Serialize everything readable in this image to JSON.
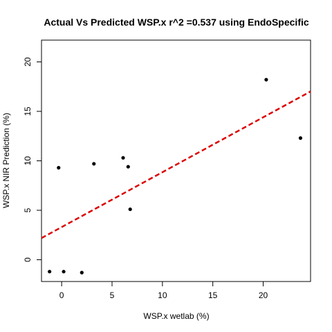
{
  "chart_data": {
    "type": "scatter",
    "title": "Actual Vs Predicted WSP.x r^2 =0.537 using EndoSpecific",
    "xlabel": "WSP.x wetlab (%)",
    "ylabel": "WSP.x NIR Prediction (%)",
    "xlim": [
      -2.0,
      24.7
    ],
    "ylim": [
      -2.2,
      22.2
    ],
    "xticks": [
      0,
      5,
      10,
      15,
      20
    ],
    "yticks": [
      0,
      5,
      10,
      15,
      20
    ],
    "grid": false,
    "point_color": "#000000",
    "points": [
      {
        "x": -1.2,
        "y": -1.2
      },
      {
        "x": -0.3,
        "y": 9.3
      },
      {
        "x": 0.2,
        "y": -1.2
      },
      {
        "x": 2.0,
        "y": -1.3
      },
      {
        "x": 3.2,
        "y": 9.7
      },
      {
        "x": 6.1,
        "y": 10.3
      },
      {
        "x": 6.6,
        "y": 9.4
      },
      {
        "x": 6.8,
        "y": 5.1
      },
      {
        "x": 20.3,
        "y": 18.2
      },
      {
        "x": 23.7,
        "y": 12.3
      }
    ],
    "fit_line": {
      "color": "#dd0000",
      "style": "dashed",
      "intercept": 3.3,
      "slope": 0.555
    }
  }
}
